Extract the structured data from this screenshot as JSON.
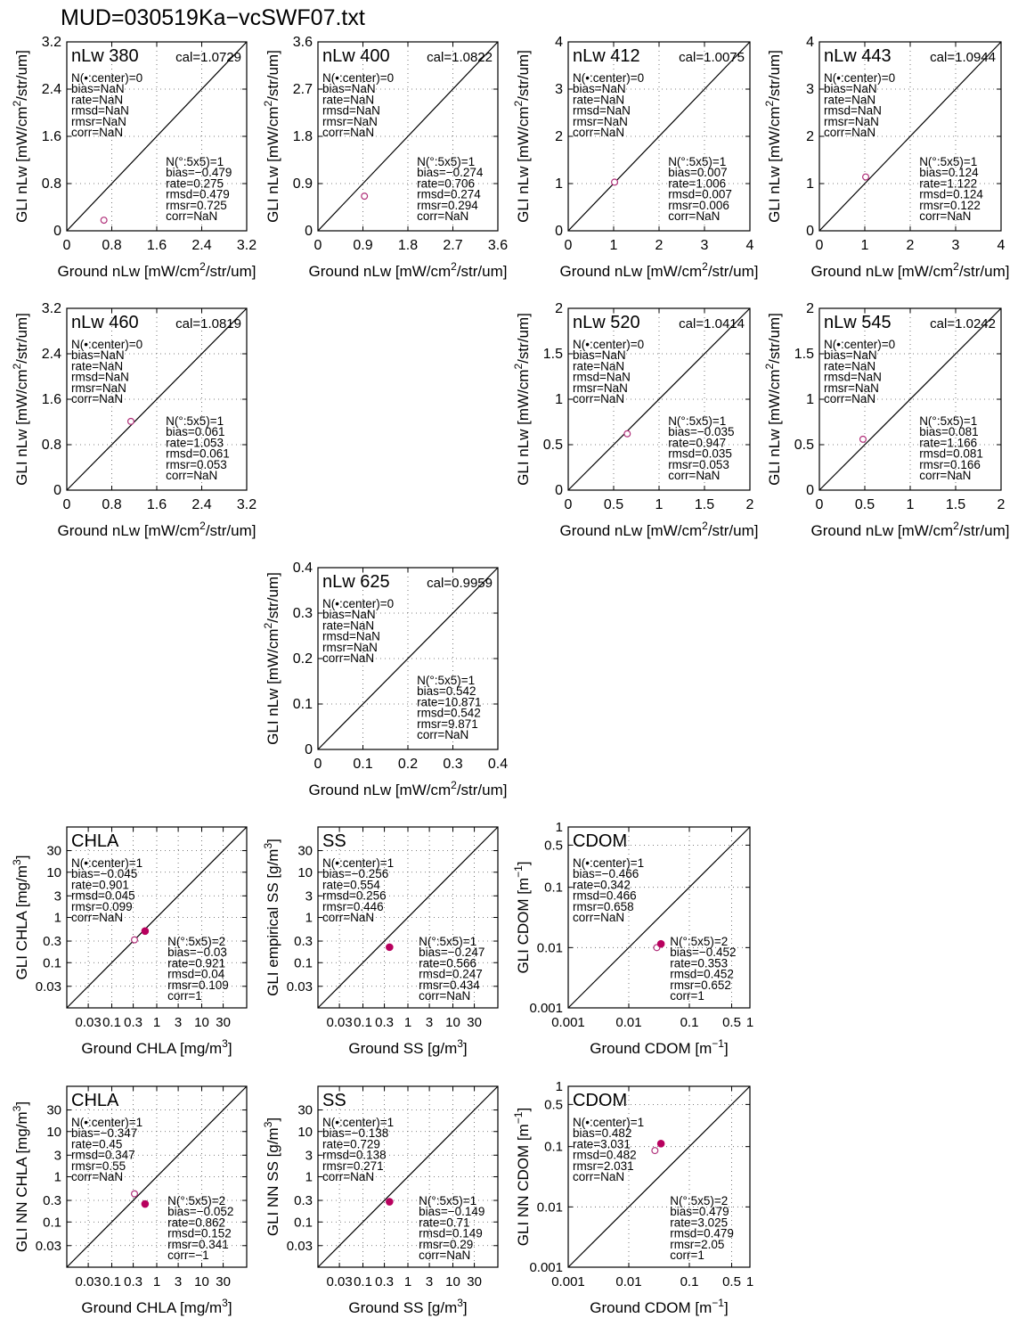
{
  "page_title": "MUD=030519Ka−vcSWF07.txt",
  "colors": {
    "open_marker": "#b0307a",
    "filled_marker": "#b8005e",
    "axis": "#000000",
    "grid": "#555555"
  },
  "chart_data": [
    {
      "id": "nlw380",
      "type": "scatter",
      "scale": "linear",
      "title": "nLw 380",
      "cal": "cal=1.0729",
      "xlabel": "Ground nLw [mW/cm²/str/um]",
      "ylabel": "GLI nLw [mW/cm²/str/um]",
      "xlim": [
        0,
        3.2
      ],
      "ylim": [
        0,
        3.2
      ],
      "xticks": [
        0,
        0.8,
        1.6,
        2.4,
        3.2
      ],
      "yticks": [
        0,
        0.8,
        1.6,
        2.4,
        3.2
      ],
      "xticklabels": [
        "0",
        "0.8",
        "1.6",
        "2.4",
        "3.2"
      ],
      "yticklabels": [
        "0",
        "0.8",
        "1.6",
        "2.4",
        "3.2"
      ],
      "grid": true,
      "one_to_one_line": true,
      "stats_center": [
        "N(•:center)=0",
        "bias=NaN",
        "rate=NaN",
        "rmsd=NaN",
        "rmsr=NaN",
        "corr=NaN"
      ],
      "stats_box": [
        "N(°:5x5)=1",
        "bias=−0.479",
        "rate=0.275",
        "rmsd=0.479",
        "rmsr=0.725",
        "corr=NaN"
      ],
      "open_points": [
        [
          0.66,
          0.18
        ]
      ],
      "filled_points": []
    },
    {
      "id": "nlw400",
      "type": "scatter",
      "scale": "linear",
      "title": "nLw 400",
      "cal": "cal=1.0822",
      "xlabel": "Ground nLw [mW/cm²/str/um]",
      "ylabel": "GLI nLw [mW/cm²/str/um]",
      "xlim": [
        0,
        3.6
      ],
      "ylim": [
        0,
        3.6
      ],
      "xticks": [
        0,
        0.9,
        1.8,
        2.7,
        3.6
      ],
      "yticks": [
        0,
        0.9,
        1.8,
        2.7,
        3.6
      ],
      "xticklabels": [
        "0",
        "0.9",
        "1.8",
        "2.7",
        "3.6"
      ],
      "yticklabels": [
        "0",
        "0.9",
        "1.8",
        "2.7",
        "3.6"
      ],
      "grid": true,
      "one_to_one_line": true,
      "stats_center": [
        "N(•:center)=0",
        "bias=NaN",
        "rate=NaN",
        "rmsd=NaN",
        "rmsr=NaN",
        "corr=NaN"
      ],
      "stats_box": [
        "N(°:5x5)=1",
        "bias=−0.274",
        "rate=0.706",
        "rmsd=0.274",
        "rmsr=0.294",
        "corr=NaN"
      ],
      "open_points": [
        [
          0.93,
          0.66
        ]
      ],
      "filled_points": []
    },
    {
      "id": "nlw412",
      "type": "scatter",
      "scale": "linear",
      "title": "nLw 412",
      "cal": "cal=1.0075",
      "xlabel": "Ground nLw [mW/cm²/str/um]",
      "ylabel": "GLI nLw [mW/cm²/str/um]",
      "xlim": [
        0,
        4
      ],
      "ylim": [
        0,
        4
      ],
      "xticks": [
        0,
        1,
        2,
        3,
        4
      ],
      "yticks": [
        0,
        1,
        2,
        3,
        4
      ],
      "xticklabels": [
        "0",
        "1",
        "2",
        "3",
        "4"
      ],
      "yticklabels": [
        "0",
        "1",
        "2",
        "3",
        "4"
      ],
      "grid": true,
      "one_to_one_line": true,
      "stats_center": [
        "N(•:center)=0",
        "bias=NaN",
        "rate=NaN",
        "rmsd=NaN",
        "rmsr=NaN",
        "corr=NaN"
      ],
      "stats_box": [
        "N(°:5x5)=1",
        "bias=0.007",
        "rate=1.006",
        "rmsd=0.007",
        "rmsr=0.006",
        "corr=NaN"
      ],
      "open_points": [
        [
          1.02,
          1.03
        ]
      ],
      "filled_points": []
    },
    {
      "id": "nlw443",
      "type": "scatter",
      "scale": "linear",
      "title": "nLw 443",
      "cal": "cal=1.0944",
      "xlabel": "Ground nLw [mW/cm²/str/um]",
      "ylabel": "GLI nLw [mW/cm²/str/um]",
      "xlim": [
        0,
        4
      ],
      "ylim": [
        0,
        4
      ],
      "xticks": [
        0,
        1,
        2,
        3,
        4
      ],
      "yticks": [
        0,
        1,
        2,
        3,
        4
      ],
      "xticklabels": [
        "0",
        "1",
        "2",
        "3",
        "4"
      ],
      "yticklabels": [
        "0",
        "1",
        "2",
        "3",
        "4"
      ],
      "grid": true,
      "one_to_one_line": true,
      "stats_center": [
        "N(•:center)=0",
        "bias=NaN",
        "rate=NaN",
        "rmsd=NaN",
        "rmsr=NaN",
        "corr=NaN"
      ],
      "stats_box": [
        "N(°:5x5)=1",
        "bias=0.124",
        "rate=1.122",
        "rmsd=0.124",
        "rmsr=0.122",
        "corr=NaN"
      ],
      "open_points": [
        [
          1.02,
          1.14
        ]
      ],
      "filled_points": []
    },
    {
      "id": "nlw460",
      "type": "scatter",
      "scale": "linear",
      "title": "nLw 460",
      "cal": "cal=1.0819",
      "xlabel": "Ground nLw [mW/cm²/str/um]",
      "ylabel": "GLI nLw [mW/cm²/str/um]",
      "xlim": [
        0,
        3.2
      ],
      "ylim": [
        0,
        3.2
      ],
      "xticks": [
        0,
        0.8,
        1.6,
        2.4,
        3.2
      ],
      "yticks": [
        0,
        0.8,
        1.6,
        2.4,
        3.2
      ],
      "xticklabels": [
        "0",
        "0.8",
        "1.6",
        "2.4",
        "3.2"
      ],
      "yticklabels": [
        "0",
        "0.8",
        "1.6",
        "2.4",
        "3.2"
      ],
      "grid": true,
      "one_to_one_line": true,
      "stats_center": [
        "N(•:center)=0",
        "bias=NaN",
        "rate=NaN",
        "rmsd=NaN",
        "rmsr=NaN",
        "corr=NaN"
      ],
      "stats_box": [
        "N(°:5x5)=1",
        "bias=0.061",
        "rate=1.053",
        "rmsd=0.061",
        "rmsr=0.053",
        "corr=NaN"
      ],
      "open_points": [
        [
          1.14,
          1.21
        ]
      ],
      "filled_points": []
    },
    {
      "id": "nlw520",
      "type": "scatter",
      "scale": "linear",
      "title": "nLw 520",
      "cal": "cal=1.0414",
      "xlabel": "Ground nLw [mW/cm²/str/um]",
      "ylabel": "GLI nLw [mW/cm²/str/um]",
      "xlim": [
        0,
        2
      ],
      "ylim": [
        0,
        2
      ],
      "xticks": [
        0,
        0.5,
        1,
        1.5,
        2
      ],
      "yticks": [
        0,
        0.5,
        1,
        1.5,
        2
      ],
      "xticklabels": [
        "0",
        "0.5",
        "1",
        "1.5",
        "2"
      ],
      "yticklabels": [
        "0",
        "0.5",
        "1",
        "1.5",
        "2"
      ],
      "grid": true,
      "one_to_one_line": true,
      "stats_center": [
        "N(•:center)=0",
        "bias=NaN",
        "rate=NaN",
        "rmsd=NaN",
        "rmsr=NaN",
        "corr=NaN"
      ],
      "stats_box": [
        "N(°:5x5)=1",
        "bias=−0.035",
        "rate=0.947",
        "rmsd=0.035",
        "rmsr=0.053",
        "corr=NaN"
      ],
      "open_points": [
        [
          0.65,
          0.62
        ]
      ],
      "filled_points": []
    },
    {
      "id": "nlw545",
      "type": "scatter",
      "scale": "linear",
      "title": "nLw 545",
      "cal": "cal=1.0242",
      "xlabel": "Ground nLw [mW/cm²/str/um]",
      "ylabel": "GLI nLw [mW/cm²/str/um]",
      "xlim": [
        0,
        2
      ],
      "ylim": [
        0,
        2
      ],
      "xticks": [
        0,
        0.5,
        1,
        1.5,
        2
      ],
      "yticks": [
        0,
        0.5,
        1,
        1.5,
        2
      ],
      "xticklabels": [
        "0",
        "0.5",
        "1",
        "1.5",
        "2"
      ],
      "yticklabels": [
        "0",
        "0.5",
        "1",
        "1.5",
        "2"
      ],
      "grid": true,
      "one_to_one_line": true,
      "stats_center": [
        "N(•:center)=0",
        "bias=NaN",
        "rate=NaN",
        "rmsd=NaN",
        "rmsr=NaN",
        "corr=NaN"
      ],
      "stats_box": [
        "N(°:5x5)=1",
        "bias=0.081",
        "rate=1.166",
        "rmsd=0.081",
        "rmsr=0.166",
        "corr=NaN"
      ],
      "open_points": [
        [
          0.48,
          0.56
        ]
      ],
      "filled_points": []
    },
    {
      "id": "nlw625",
      "type": "scatter",
      "scale": "linear",
      "title": "nLw 625",
      "cal": "cal=0.9959",
      "xlabel": "Ground nLw [mW/cm²/str/um]",
      "ylabel": "GLI nLw [mW/cm²/str/um]",
      "xlim": [
        0,
        0.4
      ],
      "ylim": [
        0,
        0.4
      ],
      "xticks": [
        0,
        0.1,
        0.2,
        0.3,
        0.4
      ],
      "yticks": [
        0,
        0.1,
        0.2,
        0.3,
        0.4
      ],
      "xticklabels": [
        "0",
        "0.1",
        "0.2",
        "0.3",
        "0.4"
      ],
      "yticklabels": [
        "0",
        "0.1",
        "0.2",
        "0.3",
        "0.4"
      ],
      "grid": true,
      "one_to_one_line": true,
      "stats_center": [
        "N(•:center)=0",
        "bias=NaN",
        "rate=NaN",
        "rmsd=NaN",
        "rmsr=NaN",
        "corr=NaN"
      ],
      "stats_box": [
        "N(°:5x5)=1",
        "bias=0.542",
        "rate=10.871",
        "rmsd=0.542",
        "rmsr=9.871",
        "corr=NaN"
      ],
      "open_points": [],
      "filled_points": []
    },
    {
      "id": "chla_emp",
      "type": "scatter",
      "scale": "log",
      "title": "CHLA",
      "cal": "",
      "xlabel": "Ground CHLA [mg/m³]",
      "ylabel": "GLI CHLA [mg/m³]",
      "xlim": [
        0.01,
        100
      ],
      "ylim": [
        0.01,
        100
      ],
      "xticks": [
        0.03,
        0.1,
        0.3,
        1,
        3,
        10,
        30
      ],
      "yticks": [
        0.03,
        0.1,
        0.3,
        1,
        3,
        10,
        30
      ],
      "xticklabels": [
        "0.03",
        "0.1",
        "0.3",
        "1",
        "3",
        "10",
        "30"
      ],
      "yticklabels": [
        "0.03",
        "0.1",
        "0.3",
        "1",
        "3",
        "10",
        "30"
      ],
      "grid": true,
      "one_to_one_line": true,
      "stats_center": [
        "N(•:center)=1",
        "bias=−0.045",
        "rate=0.901",
        "rmsd=0.045",
        "rmsr=0.099",
        "corr=NaN"
      ],
      "stats_box": [
        "N(°:5x5)=2",
        "bias=−0.03",
        "rate=0.921",
        "rmsd=0.04",
        "rmsr=0.109",
        "corr=1"
      ],
      "open_points": [
        [
          0.32,
          0.32
        ]
      ],
      "filled_points": [
        [
          0.55,
          0.5
        ]
      ]
    },
    {
      "id": "ss_emp",
      "type": "scatter",
      "scale": "log",
      "title": "SS",
      "cal": "",
      "xlabel": "Ground SS [g/m³]",
      "ylabel": "GLI empirical SS [g/m³]",
      "xlim": [
        0.01,
        100
      ],
      "ylim": [
        0.01,
        100
      ],
      "xticks": [
        0.03,
        0.1,
        0.3,
        1,
        3,
        10,
        30
      ],
      "yticks": [
        0.03,
        0.1,
        0.3,
        1,
        3,
        10,
        30
      ],
      "xticklabels": [
        "0.03",
        "0.1",
        "0.3",
        "1",
        "3",
        "10",
        "30"
      ],
      "yticklabels": [
        "0.03",
        "0.1",
        "0.3",
        "1",
        "3",
        "10",
        "30"
      ],
      "grid": true,
      "one_to_one_line": true,
      "stats_center": [
        "N(•:center)=1",
        "bias=−0.256",
        "rate=0.554",
        "rmsd=0.256",
        "rmsr=0.446",
        "corr=NaN"
      ],
      "stats_box": [
        "N(°:5x5)=1",
        "bias=−0.247",
        "rate=0.566",
        "rmsd=0.247",
        "rmsr=0.434",
        "corr=NaN"
      ],
      "open_points": [],
      "filled_points": [
        [
          0.39,
          0.22
        ]
      ]
    },
    {
      "id": "cdom_emp",
      "type": "scatter",
      "scale": "log",
      "title": "CDOM",
      "cal": "",
      "xlabel": "Ground CDOM [m⁻¹]",
      "ylabel": "GLI CDOM [m⁻¹]",
      "xlim": [
        0.001,
        1
      ],
      "ylim": [
        0.001,
        1
      ],
      "xticks": [
        0.001,
        0.01,
        0.1,
        0.5,
        1
      ],
      "yticks": [
        0.001,
        0.01,
        0.1,
        0.5,
        1
      ],
      "xticklabels": [
        "0.001",
        "0.01",
        "0.1",
        "0.5",
        "1"
      ],
      "yticklabels": [
        "0.001",
        "0.01",
        "0.1",
        "0.5",
        "1"
      ],
      "grid": true,
      "one_to_one_line": true,
      "stats_center": [
        "N(•:center)=1",
        "bias=−0.466",
        "rate=0.342",
        "rmsd=0.466",
        "rmsr=0.658",
        "corr=NaN"
      ],
      "stats_box": [
        "N(°:5x5)=2",
        "bias=−0.452",
        "rate=0.353",
        "rmsd=0.452",
        "rmsr=0.652",
        "corr=1"
      ],
      "open_points": [
        [
          0.029,
          0.01
        ]
      ],
      "filled_points": [
        [
          0.034,
          0.0115
        ]
      ]
    },
    {
      "id": "chla_nn",
      "type": "scatter",
      "scale": "log",
      "title": "CHLA",
      "cal": "",
      "xlabel": "Ground CHLA [mg/m³]",
      "ylabel": "GLI NN CHLA [mg/m³]",
      "xlim": [
        0.01,
        100
      ],
      "ylim": [
        0.01,
        100
      ],
      "xticks": [
        0.03,
        0.1,
        0.3,
        1,
        3,
        10,
        30
      ],
      "yticks": [
        0.03,
        0.1,
        0.3,
        1,
        3,
        10,
        30
      ],
      "xticklabels": [
        "0.03",
        "0.1",
        "0.3",
        "1",
        "3",
        "10",
        "30"
      ],
      "yticklabels": [
        "0.03",
        "0.1",
        "0.3",
        "1",
        "3",
        "10",
        "30"
      ],
      "grid": true,
      "one_to_one_line": true,
      "stats_center": [
        "N(•:center)=1",
        "bias=−0.347",
        "rate=0.45",
        "rmsd=0.347",
        "rmsr=0.55",
        "corr=NaN"
      ],
      "stats_box": [
        "N(°:5x5)=2",
        "bias=−0.052",
        "rate=0.862",
        "rmsd=0.152",
        "rmsr=0.341",
        "corr=−1"
      ],
      "open_points": [
        [
          0.32,
          0.42
        ]
      ],
      "filled_points": [
        [
          0.55,
          0.25
        ]
      ]
    },
    {
      "id": "ss_nn",
      "type": "scatter",
      "scale": "log",
      "title": "SS",
      "cal": "",
      "xlabel": "Ground SS [g/m³]",
      "ylabel": "GLI NN SS [g/m³]",
      "xlim": [
        0.01,
        100
      ],
      "ylim": [
        0.01,
        100
      ],
      "xticks": [
        0.03,
        0.1,
        0.3,
        1,
        3,
        10,
        30
      ],
      "yticks": [
        0.03,
        0.1,
        0.3,
        1,
        3,
        10,
        30
      ],
      "xticklabels": [
        "0.03",
        "0.1",
        "0.3",
        "1",
        "3",
        "10",
        "30"
      ],
      "yticklabels": [
        "0.03",
        "0.1",
        "0.3",
        "1",
        "3",
        "10",
        "30"
      ],
      "grid": true,
      "one_to_one_line": true,
      "stats_center": [
        "N(•:center)=1",
        "bias=−0.138",
        "rate=0.729",
        "rmsd=0.138",
        "rmsr=0.271",
        "corr=NaN"
      ],
      "stats_box": [
        "N(°:5x5)=1",
        "bias=−0.149",
        "rate=0.71",
        "rmsd=0.149",
        "rmsr=0.29",
        "corr=NaN"
      ],
      "open_points": [],
      "filled_points": [
        [
          0.39,
          0.28
        ]
      ]
    },
    {
      "id": "cdom_nn",
      "type": "scatter",
      "scale": "log",
      "title": "CDOM",
      "cal": "",
      "xlabel": "Ground CDOM [m⁻¹]",
      "ylabel": "GLI NN CDOM [m⁻¹]",
      "xlim": [
        0.001,
        1
      ],
      "ylim": [
        0.001,
        1
      ],
      "xticks": [
        0.001,
        0.01,
        0.1,
        0.5,
        1
      ],
      "yticks": [
        0.001,
        0.01,
        0.1,
        0.5,
        1
      ],
      "xticklabels": [
        "0.001",
        "0.01",
        "0.1",
        "0.5",
        "1"
      ],
      "yticklabels": [
        "0.001",
        "0.01",
        "0.1",
        "0.5",
        "1"
      ],
      "grid": true,
      "one_to_one_line": true,
      "stats_center": [
        "N(•:center)=1",
        "bias=0.482",
        "rate=3.031",
        "rmsd=0.482",
        "rmsr=2.031",
        "corr=NaN"
      ],
      "stats_box": [
        "N(°:5x5)=2",
        "bias=0.479",
        "rate=3.025",
        "rmsd=0.479",
        "rmsr=2.05",
        "corr=1"
      ],
      "open_points": [
        [
          0.027,
          0.086
        ]
      ],
      "filled_points": [
        [
          0.034,
          0.112
        ]
      ]
    }
  ]
}
